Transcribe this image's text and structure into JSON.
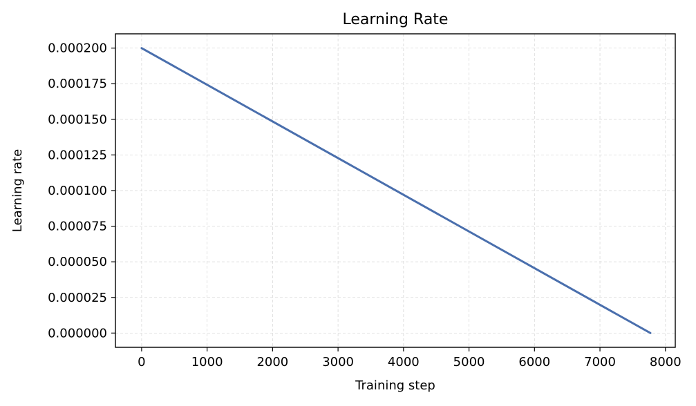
{
  "chart_data": {
    "type": "line",
    "title": "Learning Rate",
    "xlabel": "Training step",
    "ylabel": "Learning rate",
    "xlim": [
      -400,
      8150
    ],
    "ylim": [
      -1e-05,
      0.00021
    ],
    "x_ticks": [
      0,
      1000,
      2000,
      3000,
      4000,
      5000,
      6000,
      7000,
      8000
    ],
    "x_tick_labels": [
      "0",
      "1000",
      "2000",
      "3000",
      "4000",
      "5000",
      "6000",
      "7000",
      "8000"
    ],
    "y_ticks": [
      0,
      2.5e-05,
      5e-05,
      7.5e-05,
      0.0001,
      0.000125,
      0.00015,
      0.000175,
      0.0002
    ],
    "y_tick_labels": [
      "0.000000",
      "0.000025",
      "0.000050",
      "0.000075",
      "0.000100",
      "0.000125",
      "0.000150",
      "0.000175",
      "0.000200"
    ],
    "grid": true,
    "series": [
      {
        "color": "#4a6fad",
        "x": [
          0,
          7770
        ],
        "y": [
          0.0002,
          0.0
        ]
      }
    ]
  }
}
